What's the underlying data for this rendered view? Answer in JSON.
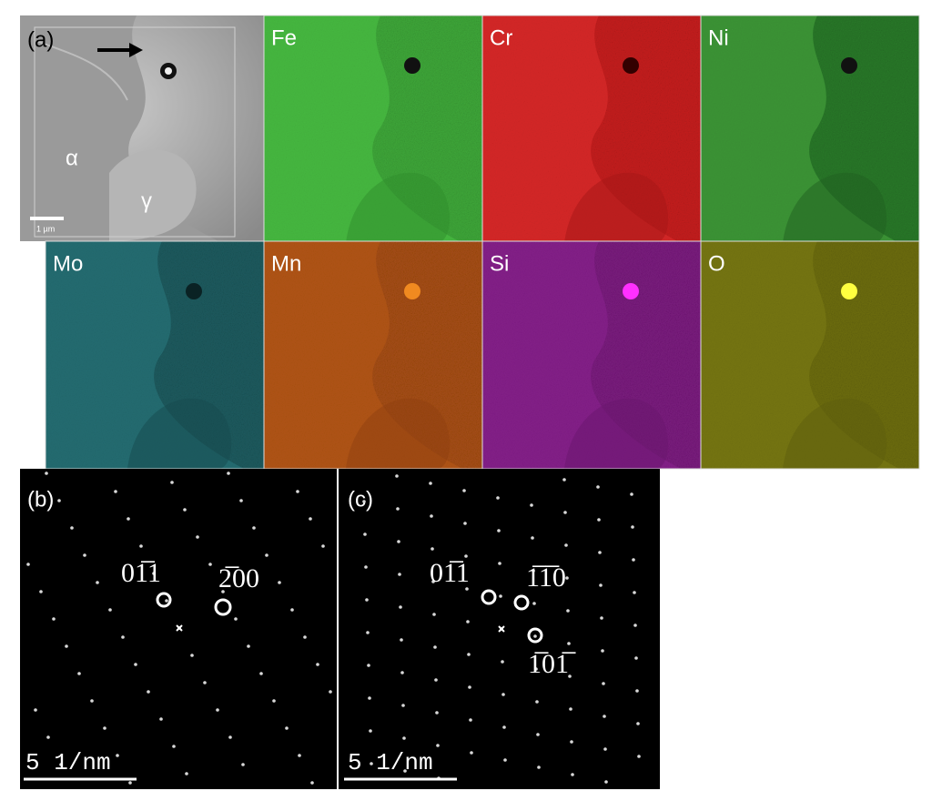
{
  "panel_a": {
    "label": "(a)",
    "phases": [
      "α",
      "γ"
    ],
    "scale_bar": "1 µm",
    "maps": [
      "Fe",
      "Cr",
      "Ni",
      "Mo",
      "Mn",
      "Si",
      "O"
    ]
  },
  "panel_b": {
    "label": "(b)",
    "spots": [
      "01̅1",
      "2̅00"
    ],
    "scale_bar": "5 1/nm"
  },
  "panel_c": {
    "label": "(c)",
    "spots": [
      "01̅1",
      "1̅1̅0",
      "1̅01̅"
    ],
    "scale_bar": "5 1/nm"
  }
}
